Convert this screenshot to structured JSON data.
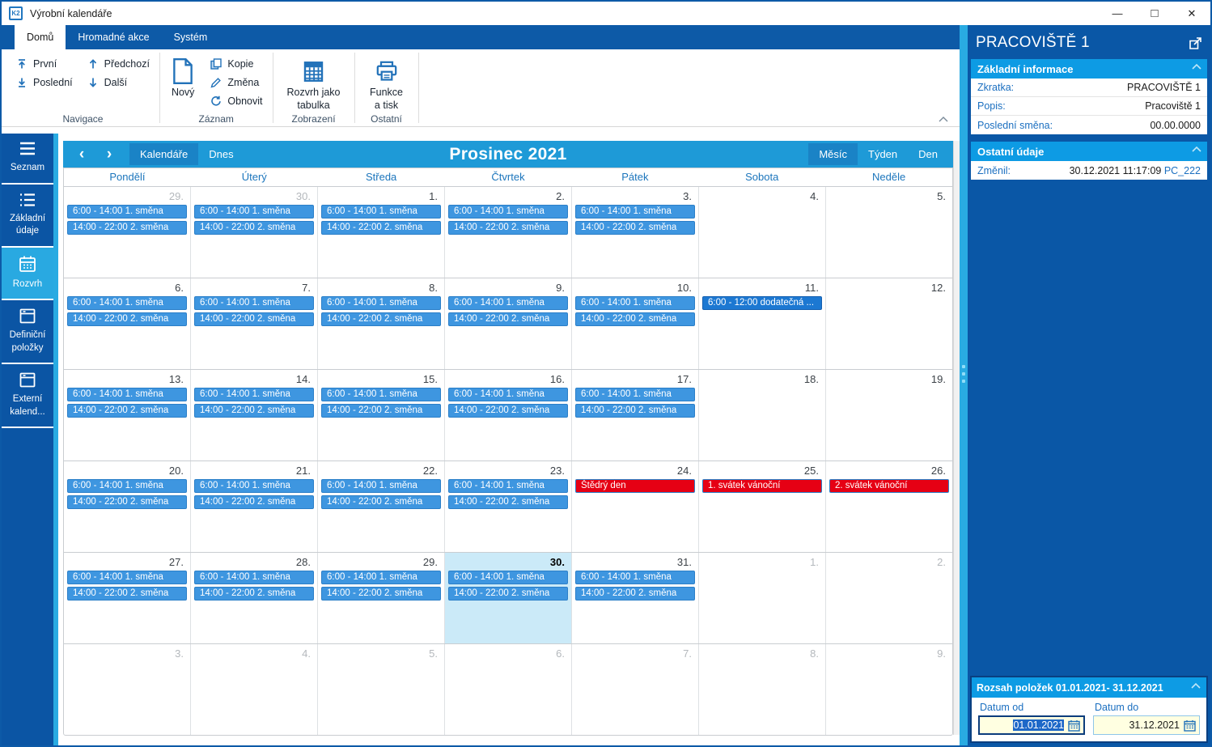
{
  "window": {
    "title": "Výrobní kalendáře",
    "app_icon_label": "K2",
    "controls": {
      "minimize": "—",
      "maximize": "□",
      "close": "✕"
    }
  },
  "ribbon": {
    "tabs": [
      {
        "label": "Domů",
        "active": true
      },
      {
        "label": "Hromadné akce",
        "active": false
      },
      {
        "label": "Systém",
        "active": false
      }
    ],
    "groups": [
      {
        "label": "Navigace",
        "buttons": [
          {
            "label": "První",
            "icon": "arrow-up-bar"
          },
          {
            "label": "Poslední",
            "icon": "arrow-down-bar"
          },
          {
            "label": "Předchozí",
            "icon": "arrow-up"
          },
          {
            "label": "Další",
            "icon": "arrow-down"
          }
        ]
      },
      {
        "label": "Záznam",
        "buttons": [
          {
            "label": "Nový",
            "icon": "document"
          },
          {
            "label": "Kopie",
            "icon": "copy"
          },
          {
            "label": "Změna",
            "icon": "pencil"
          },
          {
            "label": "Obnovit",
            "icon": "refresh"
          }
        ]
      },
      {
        "label": "Zobrazení",
        "buttons": [
          {
            "label": "Rozvrh jako tabulka",
            "icon": "table"
          }
        ]
      },
      {
        "label": "Ostatní",
        "buttons": [
          {
            "label": "Funkce a tisk",
            "icon": "printer"
          }
        ]
      }
    ]
  },
  "sidebar": {
    "items": [
      {
        "key": "seznam",
        "label": "Seznam",
        "icon": "menu",
        "active": false
      },
      {
        "key": "zakladni-udaje",
        "label": "Základní údaje",
        "icon": "list",
        "active": false
      },
      {
        "key": "rozvrh",
        "label": "Rozvrh",
        "icon": "calendar",
        "active": true
      },
      {
        "key": "definicni-polozky",
        "label": "Definiční položky",
        "icon": "box",
        "active": false
      },
      {
        "key": "externi-kalendare",
        "label": "Externí kalend...",
        "icon": "box",
        "active": false
      }
    ]
  },
  "calendar": {
    "toolbar": {
      "prev": "‹",
      "next": "›",
      "calendars_label": "Kalendáře",
      "today_label": "Dnes",
      "title": "Prosinec 2021",
      "views": [
        {
          "label": "Měsíc",
          "active": true
        },
        {
          "label": "Týden",
          "active": false
        },
        {
          "label": "Den",
          "active": false
        }
      ]
    },
    "day_headers": [
      "Pondělí",
      "Úterý",
      "Středa",
      "Čtvrtek",
      "Pátek",
      "Sobota",
      "Neděle"
    ],
    "weeks": [
      {
        "days": [
          {
            "num": "29.",
            "other": true,
            "events": [
              {
                "label": "6:00 - 14:00 1. směna",
                "type": "shift"
              },
              {
                "label": "14:00 - 22:00 2. směna",
                "type": "shift"
              }
            ]
          },
          {
            "num": "30.",
            "other": true,
            "events": [
              {
                "label": "6:00 - 14:00 1. směna",
                "type": "shift"
              },
              {
                "label": "14:00 - 22:00 2. směna",
                "type": "shift"
              }
            ]
          },
          {
            "num": "1.",
            "events": [
              {
                "label": "6:00 - 14:00 1. směna",
                "type": "shift"
              },
              {
                "label": "14:00 - 22:00 2. směna",
                "type": "shift"
              }
            ]
          },
          {
            "num": "2.",
            "events": [
              {
                "label": "6:00 - 14:00 1. směna",
                "type": "shift"
              },
              {
                "label": "14:00 - 22:00 2. směna",
                "type": "shift"
              }
            ]
          },
          {
            "num": "3.",
            "events": [
              {
                "label": "6:00 - 14:00 1. směna",
                "type": "shift"
              },
              {
                "label": "14:00 - 22:00 2. směna",
                "type": "shift"
              }
            ]
          },
          {
            "num": "4.",
            "events": []
          },
          {
            "num": "5.",
            "events": []
          }
        ]
      },
      {
        "days": [
          {
            "num": "6.",
            "events": [
              {
                "label": "6:00 - 14:00 1. směna",
                "type": "shift"
              },
              {
                "label": "14:00 - 22:00 2. směna",
                "type": "shift"
              }
            ]
          },
          {
            "num": "7.",
            "events": [
              {
                "label": "6:00 - 14:00 1. směna",
                "type": "shift"
              },
              {
                "label": "14:00 - 22:00 2. směna",
                "type": "shift"
              }
            ]
          },
          {
            "num": "8.",
            "events": [
              {
                "label": "6:00 - 14:00 1. směna",
                "type": "shift"
              },
              {
                "label": "14:00 - 22:00 2. směna",
                "type": "shift"
              }
            ]
          },
          {
            "num": "9.",
            "events": [
              {
                "label": "6:00 - 14:00 1. směna",
                "type": "shift"
              },
              {
                "label": "14:00 - 22:00 2. směna",
                "type": "shift"
              }
            ]
          },
          {
            "num": "10.",
            "events": [
              {
                "label": "6:00 - 14:00 1. směna",
                "type": "shift"
              },
              {
                "label": "14:00 - 22:00 2. směna",
                "type": "shift"
              }
            ]
          },
          {
            "num": "11.",
            "events": [
              {
                "label": "6:00 - 12:00 dodatečná ...",
                "type": "extra"
              }
            ]
          },
          {
            "num": "12.",
            "events": []
          }
        ]
      },
      {
        "days": [
          {
            "num": "13.",
            "events": [
              {
                "label": "6:00 - 14:00 1. směna",
                "type": "shift"
              },
              {
                "label": "14:00 - 22:00 2. směna",
                "type": "shift"
              }
            ]
          },
          {
            "num": "14.",
            "events": [
              {
                "label": "6:00 - 14:00 1. směna",
                "type": "shift"
              },
              {
                "label": "14:00 - 22:00 2. směna",
                "type": "shift"
              }
            ]
          },
          {
            "num": "15.",
            "events": [
              {
                "label": "6:00 - 14:00 1. směna",
                "type": "shift"
              },
              {
                "label": "14:00 - 22:00 2. směna",
                "type": "shift"
              }
            ]
          },
          {
            "num": "16.",
            "events": [
              {
                "label": "6:00 - 14:00 1. směna",
                "type": "shift"
              },
              {
                "label": "14:00 - 22:00 2. směna",
                "type": "shift"
              }
            ]
          },
          {
            "num": "17.",
            "events": [
              {
                "label": "6:00 - 14:00 1. směna",
                "type": "shift"
              },
              {
                "label": "14:00 - 22:00 2. směna",
                "type": "shift"
              }
            ]
          },
          {
            "num": "18.",
            "events": []
          },
          {
            "num": "19.",
            "events": []
          }
        ]
      },
      {
        "days": [
          {
            "num": "20.",
            "events": [
              {
                "label": "6:00 - 14:00 1. směna",
                "type": "shift"
              },
              {
                "label": "14:00 - 22:00 2. směna",
                "type": "shift"
              }
            ]
          },
          {
            "num": "21.",
            "events": [
              {
                "label": "6:00 - 14:00 1. směna",
                "type": "shift"
              },
              {
                "label": "14:00 - 22:00 2. směna",
                "type": "shift"
              }
            ]
          },
          {
            "num": "22.",
            "events": [
              {
                "label": "6:00 - 14:00 1. směna",
                "type": "shift"
              },
              {
                "label": "14:00 - 22:00 2. směna",
                "type": "shift"
              }
            ]
          },
          {
            "num": "23.",
            "events": [
              {
                "label": "6:00 - 14:00 1. směna",
                "type": "shift"
              },
              {
                "label": "14:00 - 22:00 2. směna",
                "type": "shift"
              }
            ]
          },
          {
            "num": "24.",
            "events": [
              {
                "label": "Štědrý den",
                "type": "holiday"
              }
            ]
          },
          {
            "num": "25.",
            "events": [
              {
                "label": "1. svátek vánoční",
                "type": "holiday"
              }
            ]
          },
          {
            "num": "26.",
            "events": [
              {
                "label": "2. svátek vánoční",
                "type": "holiday"
              }
            ]
          }
        ]
      },
      {
        "days": [
          {
            "num": "27.",
            "events": [
              {
                "label": "6:00 - 14:00 1. směna",
                "type": "shift"
              },
              {
                "label": "14:00 - 22:00 2. směna",
                "type": "shift"
              }
            ]
          },
          {
            "num": "28.",
            "events": [
              {
                "label": "6:00 - 14:00 1. směna",
                "type": "shift"
              },
              {
                "label": "14:00 - 22:00 2. směna",
                "type": "shift"
              }
            ]
          },
          {
            "num": "29.",
            "events": [
              {
                "label": "6:00 - 14:00 1. směna",
                "type": "shift"
              },
              {
                "label": "14:00 - 22:00 2. směna",
                "type": "shift"
              }
            ]
          },
          {
            "num": "30.",
            "today": true,
            "events": [
              {
                "label": "6:00 - 14:00 1. směna",
                "type": "shift"
              },
              {
                "label": "14:00 - 22:00 2. směna",
                "type": "shift"
              }
            ]
          },
          {
            "num": "31.",
            "events": [
              {
                "label": "6:00 - 14:00 1. směna",
                "type": "shift"
              },
              {
                "label": "14:00 - 22:00 2. směna",
                "type": "shift"
              }
            ]
          },
          {
            "num": "1.",
            "other": true,
            "events": []
          },
          {
            "num": "2.",
            "other": true,
            "events": []
          }
        ]
      },
      {
        "days": [
          {
            "num": "3.",
            "other": true,
            "events": []
          },
          {
            "num": "4.",
            "other": true,
            "events": []
          },
          {
            "num": "5.",
            "other": true,
            "events": []
          },
          {
            "num": "6.",
            "other": true,
            "events": []
          },
          {
            "num": "7.",
            "other": true,
            "events": []
          },
          {
            "num": "8.",
            "other": true,
            "events": []
          },
          {
            "num": "9.",
            "other": true,
            "events": []
          }
        ]
      }
    ]
  },
  "detail_panel": {
    "title": "PRACOVIŠTĚ 1",
    "sections": [
      {
        "title": "Základní informace",
        "rows": [
          {
            "label": "Zkratka:",
            "value": "PRACOVIŠTĚ 1"
          },
          {
            "label": "Popis:",
            "value": "Pracoviště 1"
          },
          {
            "label": "Poslední směna:",
            "value": "00.00.0000"
          }
        ]
      },
      {
        "title": "Ostatní údaje",
        "rows": [
          {
            "label": "Změnil:",
            "value": "30.12.2021 11:17:09",
            "link": "PC_222"
          }
        ]
      }
    ],
    "range_section": {
      "title": "Rozsah položek 01.01.2021- 31.12.2021",
      "date_from": {
        "label": "Datum od",
        "value": "01.01.2021",
        "selected": true
      },
      "date_to": {
        "label": "Datum do",
        "value": "31.12.2021",
        "selected": false
      }
    }
  },
  "colors": {
    "accent_dark_blue": "#0D5AA7",
    "panel_bg": "#0A57A6",
    "toolbar_blue": "#1E9AD7",
    "section_header_blue": "#0D9BE4",
    "sidebar_blue": "#0B55A4",
    "sidebar_active": "#29A9E1",
    "event_blue": "#3E96E0",
    "event_extra_blue": "#1C78D2",
    "holiday_red": "#E60014",
    "today_cell_bg": "#CBEAF8",
    "date_input_bg": "#FFFFE1"
  }
}
